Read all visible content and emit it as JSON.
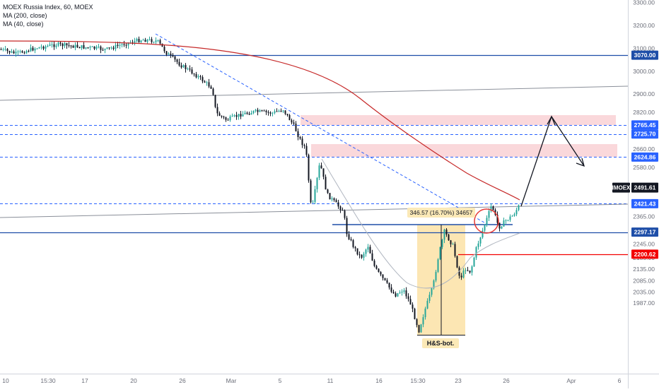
{
  "legend": {
    "title": "MOEX Russia Index, 60, MOEX",
    "ma200": "MA (200, close)",
    "ma40": "MA (40, close)"
  },
  "colors": {
    "up": "#26a69a",
    "down": "#131722",
    "ma200": "#c62828",
    "ma40": "#b0b6c0",
    "hline_solid": "#1e4ea8",
    "hline_dashed": "#2962ff",
    "support_red": "#f20000",
    "zone_fill": "#f8c8cc",
    "hs_fill": "#fbe2a6"
  },
  "chart_data": {
    "type": "line",
    "title": "MOEX Russia Index, 60, MOEX",
    "symbol": "IMOEX",
    "last_price": "2491.61",
    "ylim": [
      1960,
      3320
    ],
    "y_ticks": [
      "3300.00",
      "3200.00",
      "3100.00",
      "3000.00",
      "2900.00",
      "2820.00",
      "2740.00",
      "2660.00",
      "2580.00",
      "2500.00",
      "2425.00",
      "2365.00",
      "2305.00",
      "2245.00",
      "2185.00",
      "2135.00",
      "2085.00",
      "2035.00",
      "1987.00"
    ],
    "x_ticks": [
      "10",
      "15:30",
      "17",
      "20",
      "26",
      "Mar",
      "5",
      "11",
      "16",
      "15:30",
      "23",
      "26",
      "Apr",
      "6"
    ],
    "series": [
      {
        "name": "IMOEX",
        "approx_path": [
          {
            "x": "Feb 10",
            "y": 3085
          },
          {
            "x": "Feb 13",
            "y": 3098
          },
          {
            "x": "Feb 17",
            "y": 3095
          },
          {
            "x": "Feb 19",
            "y": 3090
          },
          {
            "x": "Feb 21",
            "y": 3140
          },
          {
            "x": "Feb 24",
            "y": 3020
          },
          {
            "x": "Feb 26",
            "y": 2910
          },
          {
            "x": "Feb 27",
            "y": 2800
          },
          {
            "x": "Mar 3",
            "y": 2830
          },
          {
            "x": "Mar 6",
            "y": 2800
          },
          {
            "x": "Mar 10",
            "y": 2580
          },
          {
            "x": "Mar 11",
            "y": 2510
          },
          {
            "x": "Mar 12",
            "y": 2410
          },
          {
            "x": "Mar 14",
            "y": 2330
          },
          {
            "x": "Mar 16",
            "y": 2185
          },
          {
            "x": "Mar 18",
            "y": 2095
          },
          {
            "x": "Mar 20",
            "y": 2310
          },
          {
            "x": "Mar 23",
            "y": 2250
          },
          {
            "x": "Mar 24",
            "y": 2400
          },
          {
            "x": "Mar 26",
            "y": 2430
          },
          {
            "x": "Mar 27",
            "y": 2491.61
          }
        ]
      },
      {
        "name": "MA (200, close)",
        "approx_path": [
          {
            "x": "Feb 10",
            "y": 3110
          },
          {
            "x": "Feb 24",
            "y": 3090
          },
          {
            "x": "Mar 3",
            "y": 3030
          },
          {
            "x": "Mar 10",
            "y": 2900
          },
          {
            "x": "Mar 16",
            "y": 2740
          },
          {
            "x": "Mar 23",
            "y": 2590
          },
          {
            "x": "Mar 27",
            "y": 2505
          }
        ]
      },
      {
        "name": "MA (40, close)",
        "approx_path": [
          {
            "x": "Mar 11",
            "y": 2480
          },
          {
            "x": "Mar 16",
            "y": 2250
          },
          {
            "x": "Mar 20",
            "y": 2200
          },
          {
            "x": "Mar 27",
            "y": 2375
          }
        ]
      }
    ],
    "price_labels": [
      {
        "value": 3070.0,
        "text": "3070.00",
        "style": "solid"
      },
      {
        "value": 2765.45,
        "text": "2765.45",
        "style": "dashed"
      },
      {
        "value": 2725.7,
        "text": "2725.70",
        "style": "dashed"
      },
      {
        "value": 2624.86,
        "text": "2624.86",
        "style": "dashed"
      },
      {
        "value": 2421.43,
        "text": "2421.43",
        "style": "dashed"
      },
      {
        "value": 2297.17,
        "text": "2297.17",
        "style": "solid"
      },
      {
        "value": 2200.62,
        "text": "2200.62",
        "style": "red"
      }
    ],
    "annotations": {
      "measure": "346.57 (16.70%) 34657",
      "pattern": "H&S-bot."
    },
    "grid": false,
    "legend_position": "top-left"
  }
}
